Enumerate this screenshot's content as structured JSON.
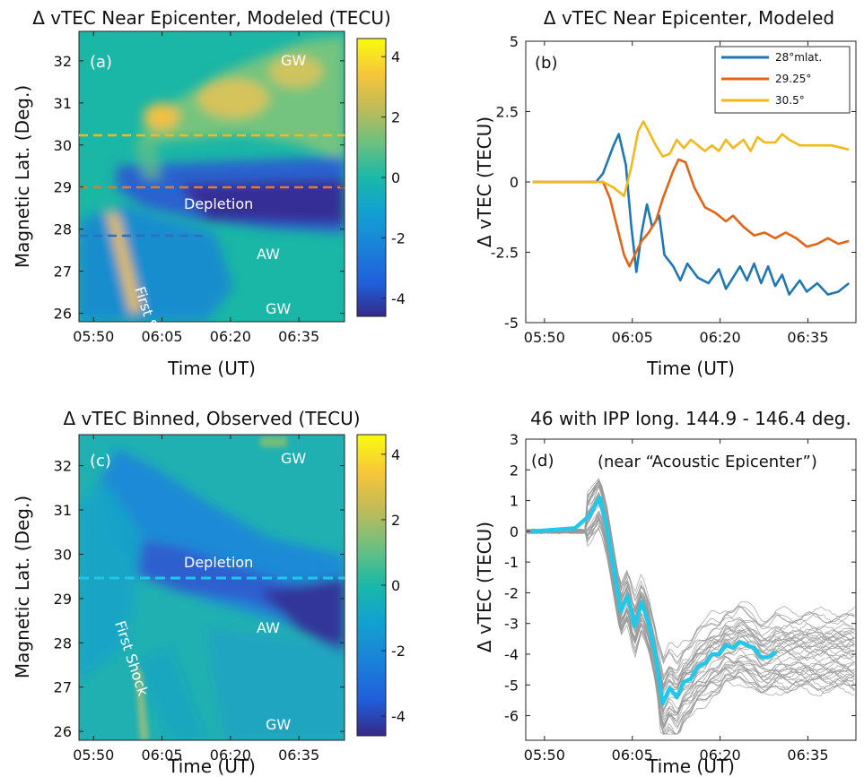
{
  "chart_data": [
    {
      "panel": "a",
      "type": "heatmap",
      "title": "Δ vTEC Near Epicenter, Modeled (TECU)",
      "xlabel": "Time (UT)",
      "ylabel": "Magnetic Lat. (Deg.)",
      "xticks": [
        "05:50",
        "06:05",
        "06:20",
        "06:35"
      ],
      "yticks": [
        "26",
        "27",
        "28",
        "29",
        "30",
        "31",
        "32"
      ],
      "ylim": [
        25.8,
        32.7
      ],
      "xlim": [
        "05:47",
        "06:45"
      ],
      "colorbar": {
        "ticks": [
          "4",
          "2",
          "0",
          "-2",
          "-4"
        ],
        "range": [
          -4.6,
          4.6
        ],
        "unit": "TECU"
      },
      "dashed_lines": [
        {
          "lat": 30.5,
          "color": "#f2b820"
        },
        {
          "lat": 29.2,
          "color": "#e07a30"
        },
        {
          "lat": 28.0,
          "color": "#2e6fbf"
        }
      ],
      "annotations": [
        "(a)",
        "GW",
        "Depletion",
        "AW",
        "First Shock",
        "GW"
      ]
    },
    {
      "panel": "b",
      "type": "line",
      "title": "Δ vTEC Near Epicenter, Modeled",
      "xlabel": "Time (UT)",
      "ylabel": "Δ vTEC (TECU)",
      "xticks": [
        "05:50",
        "06:05",
        "06:20",
        "06:35"
      ],
      "yticks": [
        "5",
        "2.5",
        "0",
        "-2.5",
        "-5"
      ],
      "ylim": [
        -5,
        5
      ],
      "legend": {
        "position": "top-right",
        "entries": [
          "28°mlat.",
          "29.25°",
          "30.5°"
        ]
      },
      "annotation": "(b)",
      "series": [
        {
          "name": "28°mlat.",
          "color": "#1f77b4",
          "points": [
            [
              5.8,
              0
            ],
            [
              5.98,
              0
            ],
            [
              6.0,
              0.3
            ],
            [
              6.03,
              1.3
            ],
            [
              6.045,
              1.7
            ],
            [
              6.065,
              0.6
            ],
            [
              6.08,
              -1.5
            ],
            [
              6.095,
              -3.2
            ],
            [
              6.11,
              -1.8
            ],
            [
              6.125,
              -0.8
            ],
            [
              6.14,
              -1.6
            ],
            [
              6.16,
              -1.2
            ],
            [
              6.175,
              -2.6
            ],
            [
              6.2,
              -3.0
            ],
            [
              6.22,
              -3.5
            ],
            [
              6.24,
              -2.9
            ],
            [
              6.27,
              -3.4
            ],
            [
              6.3,
              -3.6
            ],
            [
              6.33,
              -3.1
            ],
            [
              6.35,
              -3.8
            ],
            [
              6.37,
              -3.4
            ],
            [
              6.39,
              -3.0
            ],
            [
              6.41,
              -3.5
            ],
            [
              6.43,
              -2.9
            ],
            [
              6.45,
              -3.6
            ],
            [
              6.47,
              -3.0
            ],
            [
              6.49,
              -3.7
            ],
            [
              6.51,
              -3.3
            ],
            [
              6.53,
              -4.0
            ],
            [
              6.56,
              -3.5
            ],
            [
              6.58,
              -3.9
            ],
            [
              6.61,
              -3.6
            ],
            [
              6.64,
              -4.0
            ],
            [
              6.67,
              -3.9
            ],
            [
              6.7,
              -3.6
            ]
          ]
        },
        {
          "name": "29.25°",
          "color": "#e36414",
          "points": [
            [
              5.8,
              0
            ],
            [
              6.0,
              0
            ],
            [
              6.02,
              -0.6
            ],
            [
              6.04,
              -1.6
            ],
            [
              6.06,
              -2.6
            ],
            [
              6.075,
              -3.0
            ],
            [
              6.09,
              -2.6
            ],
            [
              6.11,
              -2.1
            ],
            [
              6.13,
              -1.8
            ],
            [
              6.15,
              -1.4
            ],
            [
              6.17,
              -0.6
            ],
            [
              6.2,
              0.4
            ],
            [
              6.215,
              0.8
            ],
            [
              6.235,
              0.7
            ],
            [
              6.26,
              -0.2
            ],
            [
              6.29,
              -0.9
            ],
            [
              6.32,
              -1.1
            ],
            [
              6.35,
              -1.4
            ],
            [
              6.37,
              -1.2
            ],
            [
              6.4,
              -1.6
            ],
            [
              6.43,
              -1.9
            ],
            [
              6.46,
              -1.8
            ],
            [
              6.49,
              -2.0
            ],
            [
              6.52,
              -1.8
            ],
            [
              6.55,
              -2.0
            ],
            [
              6.58,
              -2.3
            ],
            [
              6.61,
              -2.2
            ],
            [
              6.64,
              -2.0
            ],
            [
              6.67,
              -2.2
            ],
            [
              6.7,
              -2.1
            ]
          ]
        },
        {
          "name": "30.5°",
          "color": "#f2b81e",
          "points": [
            [
              5.8,
              0
            ],
            [
              6.0,
              0
            ],
            [
              6.03,
              -0.2
            ],
            [
              6.06,
              -0.5
            ],
            [
              6.08,
              0.5
            ],
            [
              6.1,
              1.8
            ],
            [
              6.115,
              2.15
            ],
            [
              6.13,
              1.8
            ],
            [
              6.15,
              1.3
            ],
            [
              6.17,
              0.9
            ],
            [
              6.19,
              1.0
            ],
            [
              6.21,
              1.5
            ],
            [
              6.23,
              1.2
            ],
            [
              6.25,
              1.5
            ],
            [
              6.27,
              1.3
            ],
            [
              6.29,
              1.1
            ],
            [
              6.31,
              1.3
            ],
            [
              6.33,
              1.1
            ],
            [
              6.35,
              1.5
            ],
            [
              6.37,
              1.2
            ],
            [
              6.4,
              1.5
            ],
            [
              6.42,
              1.1
            ],
            [
              6.44,
              1.6
            ],
            [
              6.46,
              1.4
            ],
            [
              6.49,
              1.4
            ],
            [
              6.51,
              1.7
            ],
            [
              6.53,
              1.5
            ],
            [
              6.56,
              1.3
            ],
            [
              6.6,
              1.3
            ],
            [
              6.65,
              1.3
            ],
            [
              6.7,
              1.15
            ]
          ]
        }
      ]
    },
    {
      "panel": "c",
      "type": "heatmap",
      "title": "Δ vTEC Binned, Observed (TECU)",
      "xlabel": "Time (UT)",
      "ylabel": "Magnetic Lat. (Deg.)",
      "xticks": [
        "05:50",
        "06:05",
        "06:20",
        "06:35"
      ],
      "yticks": [
        "26",
        "27",
        "28",
        "29",
        "30",
        "31",
        "32"
      ],
      "ylim": [
        25.8,
        32.7
      ],
      "xlim": [
        "05:47",
        "06:45"
      ],
      "colorbar": {
        "ticks": [
          "4",
          "2",
          "0",
          "-2",
          "-4"
        ],
        "range": [
          -4.6,
          4.6
        ],
        "unit": "TECU"
      },
      "dashed_lines": [
        {
          "lat": 29.3,
          "color": "#1ec8e8"
        }
      ],
      "annotations": [
        "(c)",
        "GW",
        "Depletion",
        "AW",
        "First Shock",
        "GW"
      ]
    },
    {
      "panel": "d",
      "type": "line",
      "title": "46 with IPP long. 144.9 - 146.4 deg.",
      "xlabel": "Time (UT)",
      "ylabel": "Δ vTEC (TECU)",
      "xticks": [
        "05:50",
        "06:05",
        "06:20",
        "06:35"
      ],
      "yticks": [
        "3",
        "2",
        "1",
        "0",
        "-1",
        "-2",
        "-3",
        "-4",
        "-5",
        "-6"
      ],
      "ylim": [
        -6.8,
        3
      ],
      "annotation": "(d)",
      "note": "(near “Acoustic Epicenter”)",
      "series": [
        {
          "name": "",
          "color": "#22c8e8",
          "role": "mean",
          "points": [
            [
              5.8,
              0
            ],
            [
              5.92,
              0.1
            ],
            [
              5.96,
              0.5
            ],
            [
              5.99,
              1.1
            ],
            [
              6.01,
              0.2
            ],
            [
              6.03,
              -1.2
            ],
            [
              6.05,
              -2.6
            ],
            [
              6.07,
              -2.1
            ],
            [
              6.09,
              -3.1
            ],
            [
              6.11,
              -2.3
            ],
            [
              6.13,
              -3.0
            ],
            [
              6.15,
              -4.1
            ],
            [
              6.17,
              -5.6
            ],
            [
              6.19,
              -5.1
            ],
            [
              6.21,
              -5.4
            ],
            [
              6.23,
              -4.9
            ],
            [
              6.25,
              -4.8
            ],
            [
              6.27,
              -4.4
            ],
            [
              6.29,
              -4.3
            ],
            [
              6.31,
              -4.0
            ],
            [
              6.33,
              -4.0
            ],
            [
              6.35,
              -3.7
            ],
            [
              6.37,
              -3.8
            ],
            [
              6.39,
              -3.6
            ],
            [
              6.41,
              -3.7
            ],
            [
              6.43,
              -3.8
            ],
            [
              6.45,
              -4.1
            ],
            [
              6.47,
              -4.1
            ],
            [
              6.49,
              -3.95
            ]
          ]
        }
      ]
    }
  ]
}
